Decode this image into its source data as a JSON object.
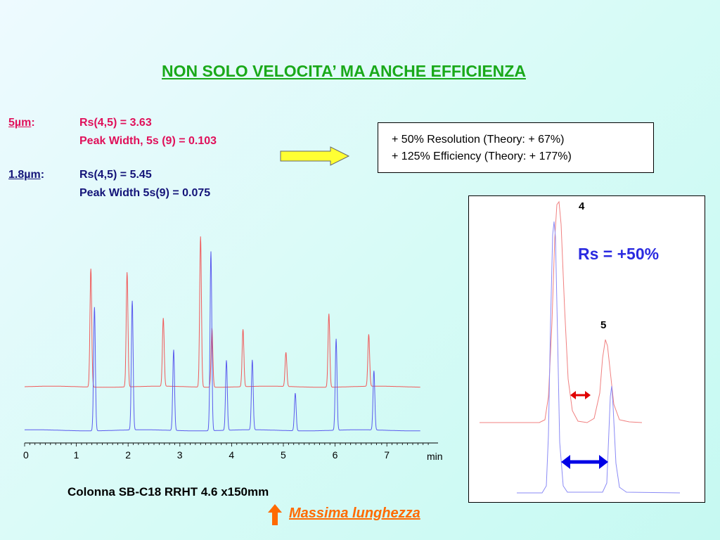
{
  "title": "NON SOLO VELOCITA’ MA ANCHE EFFICIENZA",
  "colors": {
    "red_trace": "#f05a5a",
    "blue_trace": "#5a5aee",
    "title": "#1aa91a",
    "accent_red": "#e0105a",
    "accent_navy": "#141479",
    "arrow_yellow": "#ffff33",
    "arrow_orange": "#ff6a00"
  },
  "left_block": {
    "five_um": {
      "particle": "5µm",
      "colon": ":",
      "rs": "Rs(4,5) = 3.63",
      "width": "Peak Width, 5s (9) = 0.103"
    },
    "one8_um": {
      "particle": "1.8µm",
      "colon": ":",
      "rs": "Rs(4,5) = 5.45",
      "width": "Peak Width 5s(9) = 0.075"
    }
  },
  "box": {
    "line1": "+ 50% Resolution  (Theory: + 67%)",
    "line2": "+ 125% Efficiency  (Theory: + 177%)"
  },
  "zoom_panel": {
    "peak4": "4",
    "peak5": "5",
    "rs": "Rs = +50%"
  },
  "caption": "Colonna SB-C18 RRHT 4.6 x150mm",
  "note": "Massima lunghezza",
  "chart_data": {
    "type": "line",
    "x_unit": "min",
    "xlim": [
      0,
      8
    ],
    "ticks": [
      "0",
      "1",
      "2",
      "3",
      "4",
      "5",
      "6",
      "7"
    ],
    "xlabel": "min",
    "series": [
      {
        "name": "5µm",
        "color": "#f05a5a",
        "peaks": [
          {
            "rt": 1.28,
            "h": 0.66
          },
          {
            "rt": 1.98,
            "h": 0.64
          },
          {
            "rt": 2.68,
            "h": 0.38
          },
          {
            "rt": 3.4,
            "h": 0.84
          },
          {
            "rt": 3.62,
            "h": 0.33
          },
          {
            "rt": 4.22,
            "h": 0.32
          },
          {
            "rt": 5.05,
            "h": 0.19
          },
          {
            "rt": 5.88,
            "h": 0.41
          },
          {
            "rt": 6.65,
            "h": 0.29
          }
        ]
      },
      {
        "name": "1.8µm",
        "color": "#5a5aee",
        "peaks": [
          {
            "rt": 1.35,
            "h": 0.69
          },
          {
            "rt": 2.08,
            "h": 0.72
          },
          {
            "rt": 2.88,
            "h": 0.45
          },
          {
            "rt": 3.6,
            "h": 1.0
          },
          {
            "rt": 3.9,
            "h": 0.39
          },
          {
            "rt": 4.4,
            "h": 0.39
          },
          {
            "rt": 5.23,
            "h": 0.21
          },
          {
            "rt": 6.02,
            "h": 0.51
          },
          {
            "rt": 6.75,
            "h": 0.33
          }
        ]
      }
    ]
  }
}
